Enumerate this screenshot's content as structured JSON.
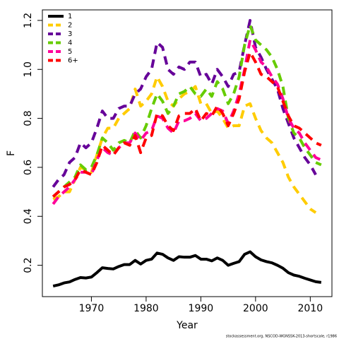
{
  "chart_data": {
    "type": "line",
    "x_label": "Year",
    "y_label": "F",
    "source": "stockassessment.org, NSCOD-WGNSSK-2013-shortscale, r1986",
    "x": [
      1963,
      1964,
      1965,
      1966,
      1967,
      1968,
      1969,
      1970,
      1971,
      1972,
      1973,
      1974,
      1975,
      1976,
      1977,
      1978,
      1979,
      1980,
      1981,
      1982,
      1983,
      1984,
      1985,
      1986,
      1987,
      1988,
      1989,
      1990,
      1991,
      1992,
      1993,
      1994,
      1995,
      1996,
      1997,
      1998,
      1999,
      2000,
      2001,
      2002,
      2003,
      2004,
      2005,
      2006,
      2007,
      2008,
      2009,
      2010,
      2011,
      2012
    ],
    "xlim": [
      1961.04,
      2013.96
    ],
    "xticks": [
      1970,
      1980,
      1990,
      2000,
      2010
    ],
    "ylim": [
      0.072,
      1.243
    ],
    "yticks": [
      0.2,
      0.4,
      0.6,
      0.8,
      {
        "value": 1,
        "label": "1.0"
      },
      1.2
    ],
    "legend": "top-left",
    "series": [
      {
        "name": "1",
        "color": "#000000",
        "line_style": "solid",
        "values": [
          0.115,
          0.12,
          0.128,
          0.132,
          0.142,
          0.15,
          0.148,
          0.152,
          0.17,
          0.19,
          0.187,
          0.185,
          0.195,
          0.203,
          0.203,
          0.22,
          0.205,
          0.22,
          0.225,
          0.25,
          0.245,
          0.23,
          0.22,
          0.235,
          0.233,
          0.233,
          0.24,
          0.225,
          0.225,
          0.218,
          0.23,
          0.22,
          0.2,
          0.208,
          0.215,
          0.245,
          0.255,
          0.235,
          0.222,
          0.215,
          0.21,
          0.2,
          0.188,
          0.17,
          0.16,
          0.155,
          0.147,
          0.14,
          0.133,
          0.13
        ]
      },
      {
        "name": "2",
        "color": "#FFCC00",
        "line_style": "dashed",
        "values": [
          0.47,
          0.48,
          0.5,
          0.5,
          0.55,
          0.6,
          0.59,
          0.58,
          0.65,
          0.72,
          0.76,
          0.76,
          0.8,
          0.82,
          0.84,
          0.92,
          0.85,
          0.87,
          0.9,
          0.97,
          0.93,
          0.87,
          0.85,
          0.88,
          0.9,
          0.91,
          0.93,
          0.86,
          0.86,
          0.82,
          0.83,
          0.8,
          0.76,
          0.77,
          0.77,
          0.85,
          0.86,
          0.8,
          0.75,
          0.72,
          0.7,
          0.66,
          0.62,
          0.56,
          0.52,
          0.49,
          0.46,
          0.43,
          0.415,
          null
        ]
      },
      {
        "name": "3",
        "color": "#660099",
        "line_style": "dashed",
        "values": [
          0.52,
          0.55,
          0.57,
          0.62,
          0.64,
          0.7,
          0.68,
          0.7,
          0.76,
          0.83,
          0.8,
          0.8,
          0.84,
          0.85,
          0.85,
          0.9,
          0.92,
          0.97,
          1.0,
          1.11,
          1.09,
          1.0,
          0.98,
          1.01,
          1.0,
          1.03,
          1.03,
          0.97,
          0.98,
          0.94,
          1.0,
          0.97,
          0.93,
          0.98,
          0.99,
          1.1,
          1.2,
          1.09,
          1.05,
          1.0,
          0.96,
          0.92,
          0.84,
          0.78,
          0.72,
          0.68,
          0.64,
          0.61,
          0.57,
          null
        ]
      },
      {
        "name": "4",
        "color": "#66CC00",
        "line_style": "dashed",
        "values": [
          0.48,
          0.5,
          0.52,
          0.54,
          0.56,
          0.61,
          0.59,
          0.6,
          0.65,
          0.72,
          0.7,
          0.67,
          0.7,
          0.71,
          0.7,
          0.75,
          0.72,
          0.77,
          0.84,
          0.9,
          0.87,
          0.82,
          0.85,
          0.9,
          0.91,
          0.93,
          0.9,
          0.89,
          0.92,
          0.89,
          0.95,
          0.92,
          0.86,
          0.9,
          0.97,
          1.1,
          1.18,
          1.12,
          1.1,
          1.08,
          1.05,
          1.0,
          0.93,
          0.8,
          0.74,
          0.72,
          0.68,
          0.65,
          0.62,
          0.61
        ]
      },
      {
        "name": "5",
        "color": "#FF0099",
        "line_style": "dashed",
        "values": [
          0.45,
          0.48,
          0.5,
          0.52,
          0.55,
          0.58,
          0.58,
          0.57,
          0.63,
          0.68,
          0.66,
          0.65,
          0.68,
          0.7,
          0.7,
          0.74,
          0.71,
          0.74,
          0.75,
          0.81,
          0.8,
          0.76,
          0.74,
          0.79,
          0.79,
          0.8,
          0.82,
          0.79,
          0.8,
          0.82,
          0.84,
          0.83,
          0.78,
          0.83,
          0.9,
          1.0,
          1.12,
          1.08,
          1.03,
          1.01,
          0.97,
          0.94,
          0.88,
          0.8,
          0.76,
          0.74,
          0.7,
          0.67,
          0.64,
          0.63
        ]
      },
      {
        "name": "6+",
        "color": "#FF0000",
        "line_style": "dashed",
        "values": [
          0.48,
          0.5,
          0.52,
          0.53,
          0.55,
          0.59,
          0.58,
          0.57,
          0.62,
          0.69,
          0.67,
          0.65,
          0.68,
          0.7,
          0.69,
          0.73,
          0.66,
          0.72,
          0.73,
          0.82,
          0.81,
          0.77,
          0.75,
          0.81,
          0.82,
          0.82,
          0.84,
          0.79,
          0.82,
          0.81,
          0.85,
          0.82,
          0.77,
          0.82,
          0.88,
          0.99,
          1.07,
          1.03,
          0.98,
          0.97,
          0.95,
          0.93,
          0.87,
          0.81,
          0.77,
          0.76,
          0.74,
          0.72,
          0.7,
          0.69
        ]
      }
    ]
  }
}
